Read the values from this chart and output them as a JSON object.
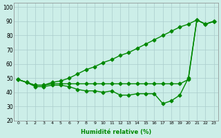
{
  "title": "",
  "xlabel": "Humidité relative (%)",
  "ylabel": "",
  "background_color": "#cceee8",
  "grid_color": "#aacccc",
  "line_color": "#008800",
  "marker": "D",
  "markersize": 2.5,
  "linewidth": 1.0,
  "xlim": [
    -0.5,
    23.5
  ],
  "ylim": [
    20,
    103
  ],
  "xticks": [
    0,
    1,
    2,
    3,
    4,
    5,
    6,
    7,
    8,
    9,
    10,
    11,
    12,
    13,
    14,
    15,
    16,
    17,
    18,
    19,
    20,
    21,
    22,
    23
  ],
  "yticks": [
    20,
    30,
    40,
    50,
    60,
    70,
    80,
    90,
    100
  ],
  "series": [
    [
      49,
      47,
      45,
      45,
      47,
      48,
      50,
      53,
      56,
      58,
      61,
      63,
      66,
      68,
      71,
      74,
      77,
      80,
      83,
      86,
      88,
      91,
      88,
      90
    ],
    [
      49,
      47,
      45,
      45,
      46,
      46,
      46,
      46,
      46,
      46,
      46,
      46,
      46,
      46,
      46,
      46,
      46,
      46,
      46,
      46,
      49,
      91,
      88,
      90
    ],
    [
      49,
      47,
      44,
      44,
      45,
      45,
      44,
      42,
      41,
      41,
      40,
      41,
      38,
      38,
      39,
      39,
      39,
      32,
      34,
      38,
      50,
      91,
      88,
      90
    ]
  ]
}
